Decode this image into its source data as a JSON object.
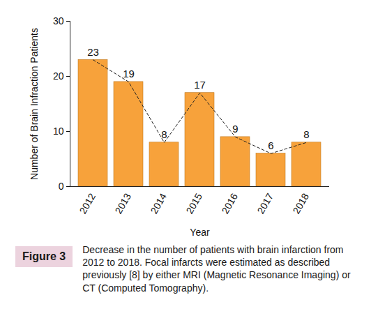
{
  "chart_data": {
    "type": "bar",
    "figure_label": "Figure 3",
    "caption": "Decrease in the number of patients with brain infarction from 2012 to 2018.  Focal infarcts were estimated as described previously [8] by either MRI (Magnetic Resonance Imaging) or CT (Computed Tomography).",
    "categories": [
      "2012",
      "2013",
      "2014",
      "2015",
      "2016",
      "2017",
      "2018"
    ],
    "values": [
      23,
      19,
      8,
      17,
      9,
      6,
      8
    ],
    "color": "#f7a23b",
    "ylim": [
      0,
      30
    ],
    "yticks": [
      0,
      10,
      20,
      30
    ],
    "xlabel": "Year",
    "ylabel": "Number of Brain Infraction Patients",
    "data_labels": true,
    "line_style": "dashed",
    "grid": false
  }
}
